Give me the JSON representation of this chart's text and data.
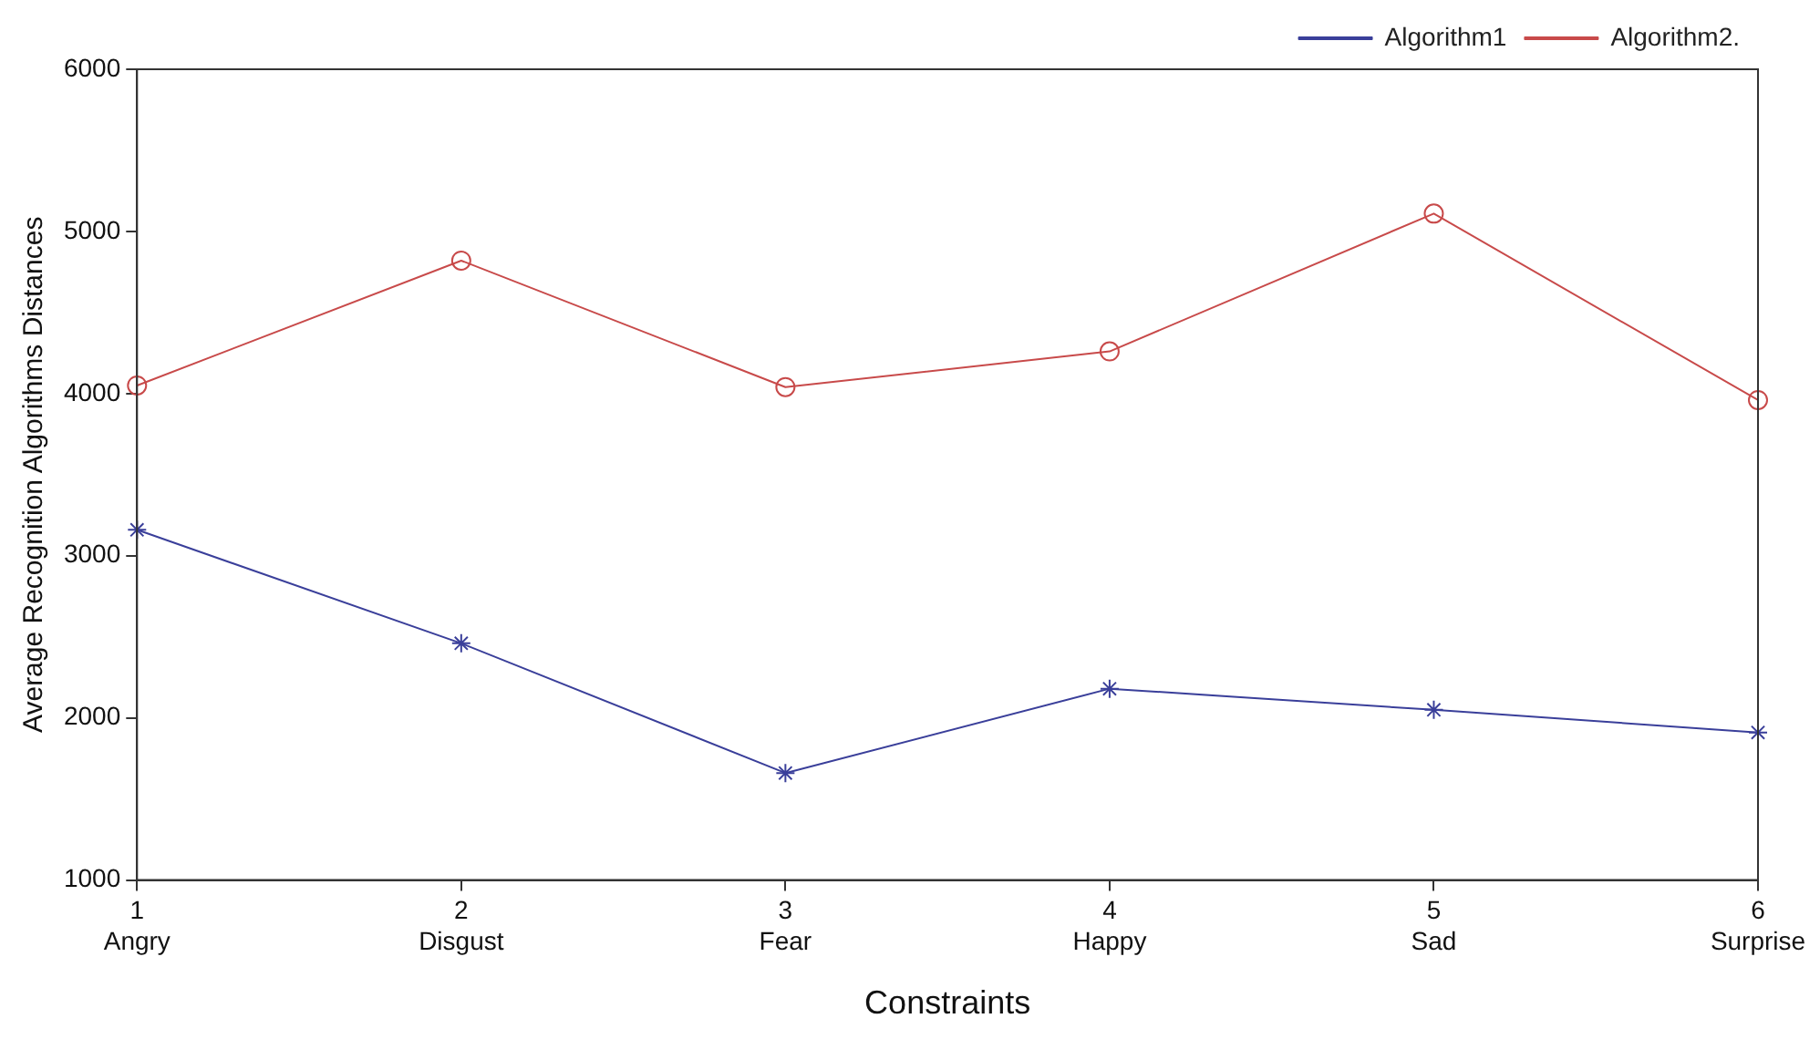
{
  "chart_data": {
    "type": "line",
    "xlabel": "Constraints",
    "ylabel": "Average Recognition Algorithms Distances",
    "categories": [
      "1\nAngry",
      "2\nDisgust",
      "3\nFear",
      "4\nHappy",
      "5\nSad",
      "6\nSurprise"
    ],
    "ylim": [
      1000,
      6000
    ],
    "yticks": [
      1000,
      2000,
      3000,
      4000,
      5000,
      6000
    ],
    "grid": false,
    "legend": "top right",
    "line_style": "solid",
    "series": [
      {
        "name": "Algorithm1",
        "color": "#3a3f9a",
        "marker": "cross",
        "values": [
          3160,
          2460,
          1660,
          2180,
          2050,
          1910
        ]
      },
      {
        "name": "Algorithm2.",
        "color": "#c84a4a",
        "marker": "circle",
        "values": [
          4050,
          4820,
          4040,
          4260,
          5110,
          3960
        ]
      }
    ]
  }
}
